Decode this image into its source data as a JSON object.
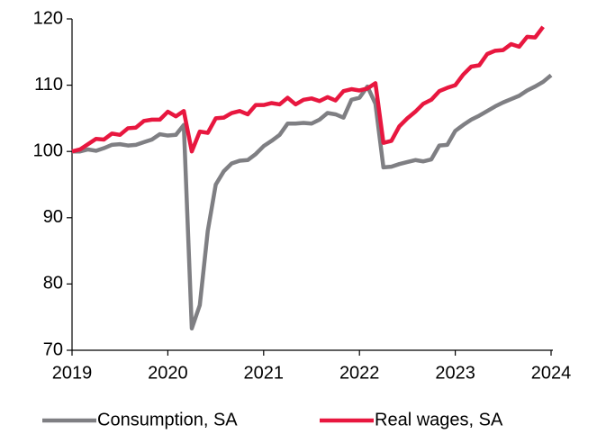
{
  "chart_data": {
    "type": "line",
    "categories": [
      "2019",
      null,
      null,
      null,
      null,
      null,
      null,
      null,
      null,
      null,
      null,
      null,
      "2020",
      null,
      null,
      null,
      null,
      null,
      null,
      null,
      null,
      null,
      null,
      null,
      "2021",
      null,
      null,
      null,
      null,
      null,
      null,
      null,
      null,
      null,
      null,
      null,
      "2022",
      null,
      null,
      null,
      null,
      null,
      null,
      null,
      null,
      null,
      null,
      null,
      "2023",
      null,
      null,
      null,
      null,
      null,
      null,
      null,
      null,
      null,
      null,
      null,
      "2024"
    ],
    "series": [
      {
        "name": "Consumption, SA",
        "color": "#7f7f83",
        "values": [
          100,
          100,
          100.3,
          100.1,
          100.5,
          101,
          101.1,
          100.9,
          101,
          101.4,
          101.8,
          102.6,
          102.4,
          102.5,
          104,
          73.3,
          76.8,
          88,
          95,
          97,
          98.2,
          98.6,
          98.7,
          99.6,
          100.8,
          101.6,
          102.5,
          104.2,
          104.2,
          104.3,
          104.2,
          104.8,
          105.8,
          105.6,
          105.1,
          107.8,
          108.1,
          109.8,
          107.2,
          97.6,
          97.7,
          98.1,
          98.4,
          98.7,
          98.5,
          98.8,
          100.9,
          101,
          103.1,
          104,
          104.8,
          105.4,
          106.1,
          106.8,
          107.4,
          107.9,
          108.4,
          109.2,
          109.8,
          110.5,
          111.5
        ]
      },
      {
        "name": "Real wages, SA",
        "color": "#e8173f",
        "values": [
          100,
          100.3,
          101.1,
          101.9,
          101.8,
          102.7,
          102.5,
          103.5,
          103.6,
          104.6,
          104.8,
          104.8,
          106,
          105.3,
          106.1,
          100,
          103,
          102.8,
          105,
          105.1,
          105.8,
          106.1,
          105.6,
          107,
          107,
          107.3,
          107.1,
          108.1,
          107.1,
          107.8,
          108,
          107.6,
          108.2,
          107.7,
          109.1,
          109.4,
          109.2,
          109.5,
          110.3,
          101.3,
          101.6,
          103.8,
          105,
          106,
          107.2,
          107.8,
          109.1,
          109.6,
          110,
          111.6,
          112.8,
          113,
          114.7,
          115.2,
          115.3,
          116.2,
          115.8,
          117.3,
          117.2,
          118.8,
          null
        ]
      }
    ],
    "ylim": [
      70,
      120
    ],
    "yticks": [
      70,
      80,
      90,
      100,
      110,
      120
    ],
    "grid": false
  }
}
